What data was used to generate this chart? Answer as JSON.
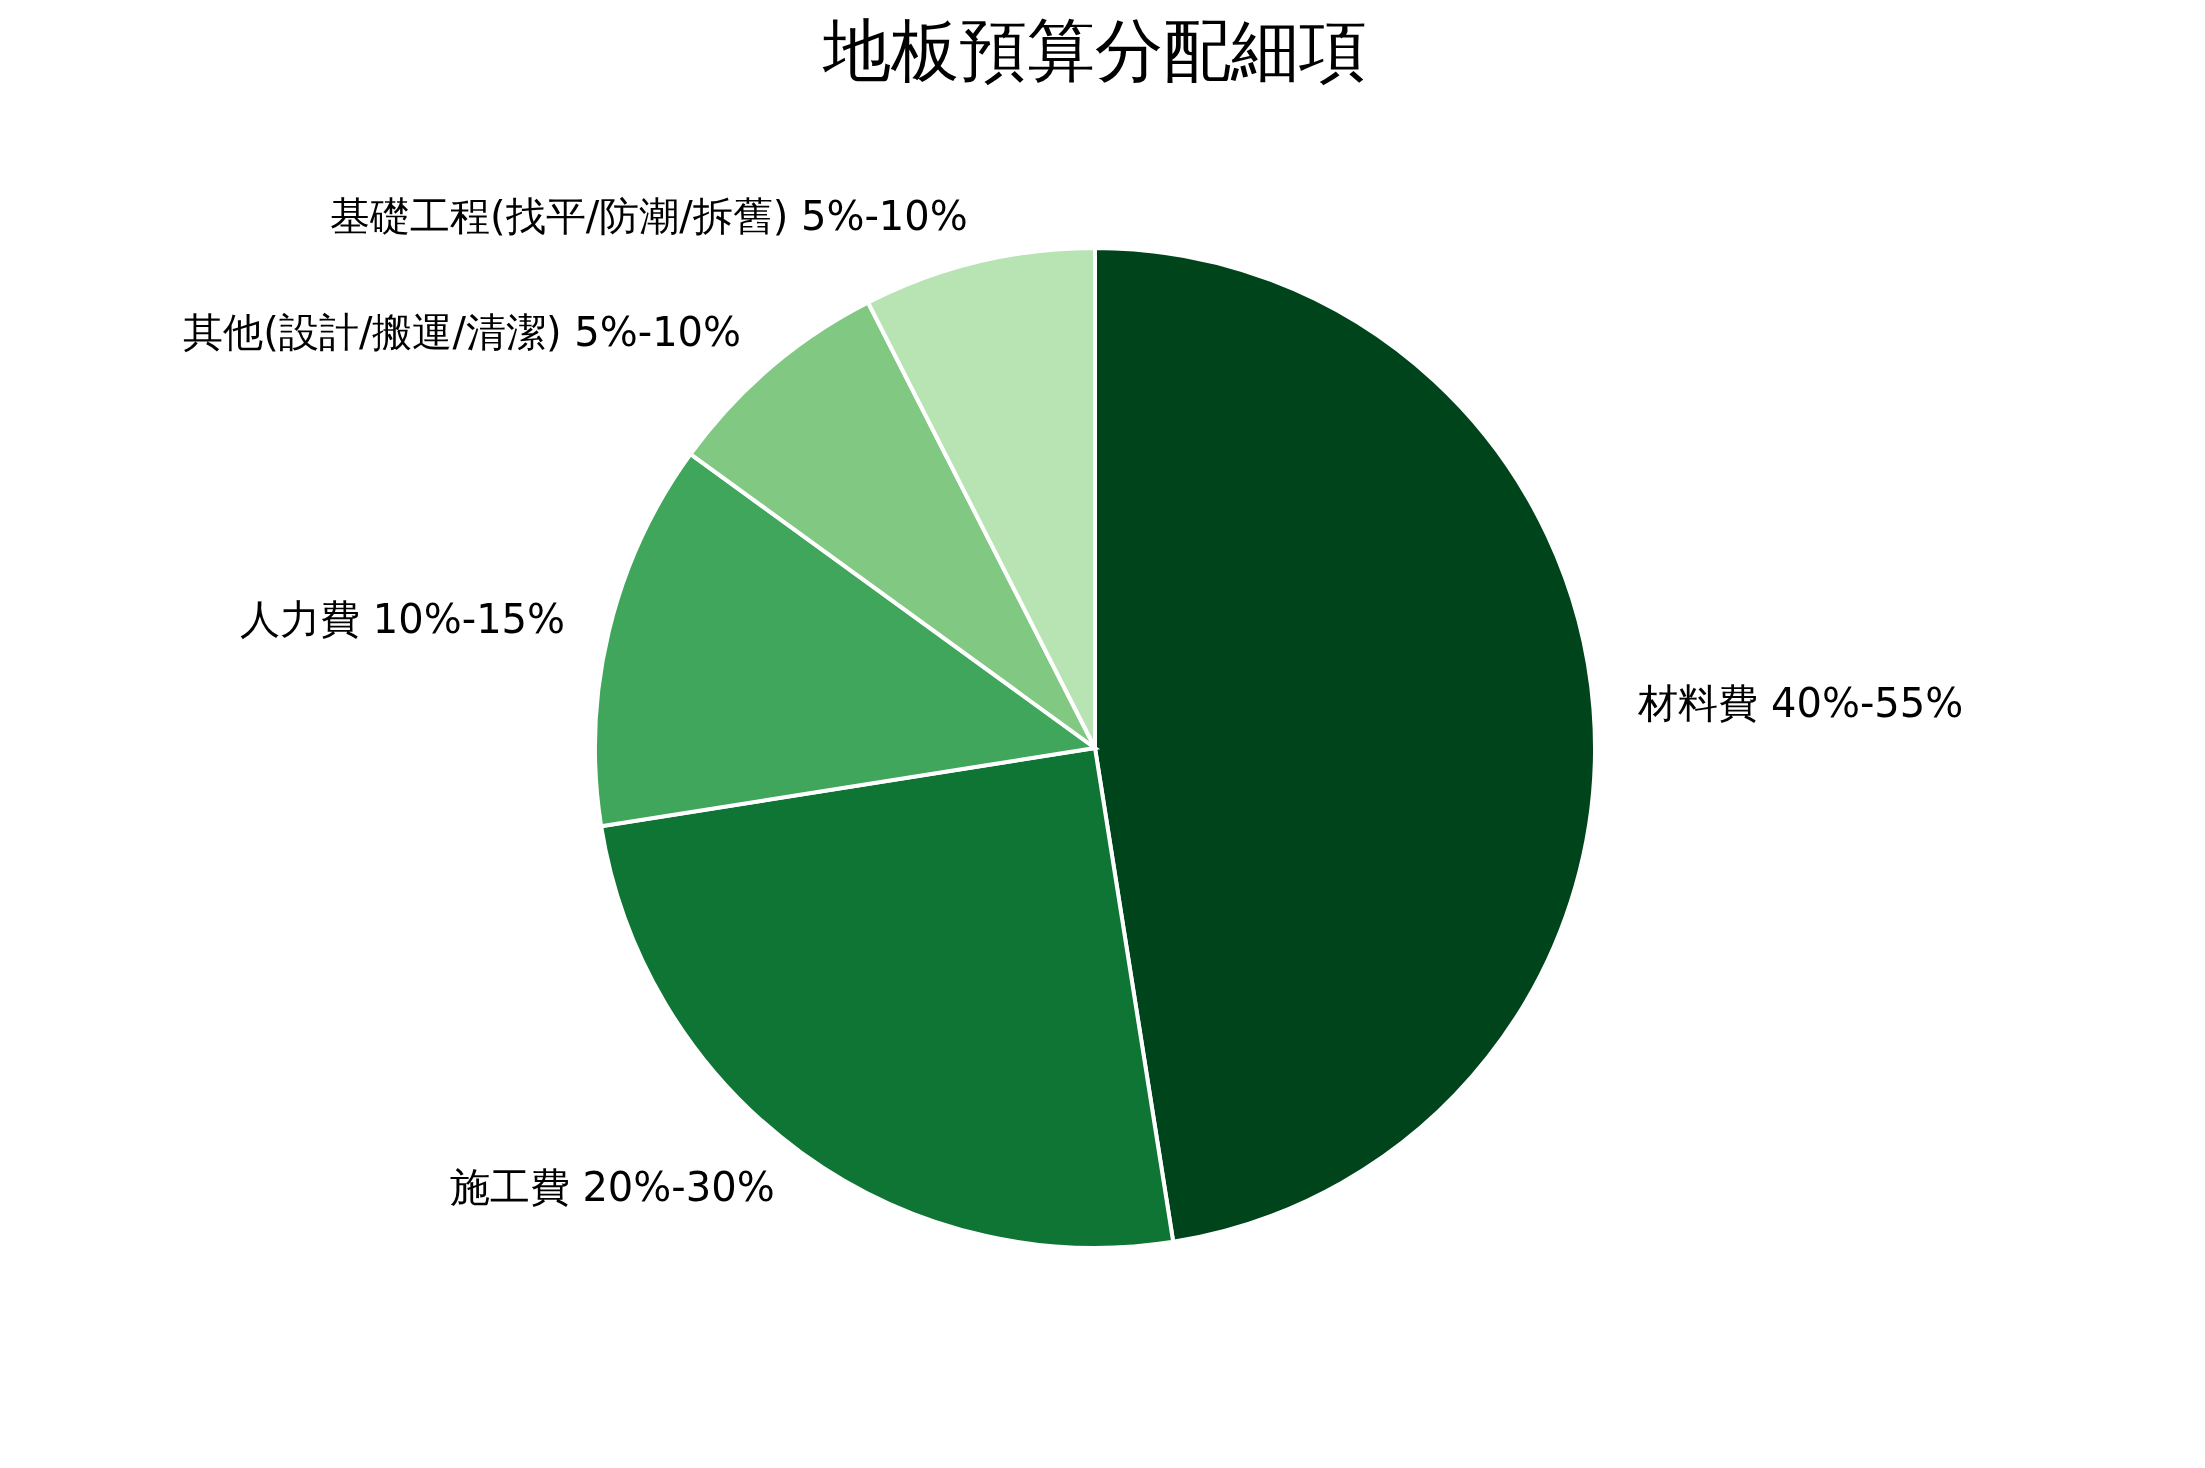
{
  "chart_data": {
    "type": "pie",
    "title": "地板預算分配細項",
    "categories": [
      "材料費 40%-55%",
      "施工費 20%-30%",
      "人力費 10%-15%",
      "其他(設計/搬運/清潔) 5%-10%",
      "基礎工程(找平/防潮/拆舊) 5%-10%"
    ],
    "values": [
      47.5,
      25,
      12.5,
      7.5,
      7.5
    ],
    "colors": [
      "#00441b",
      "#0e7535",
      "#3fa65b",
      "#81c882",
      "#b8e3b3"
    ],
    "legend": false
  }
}
